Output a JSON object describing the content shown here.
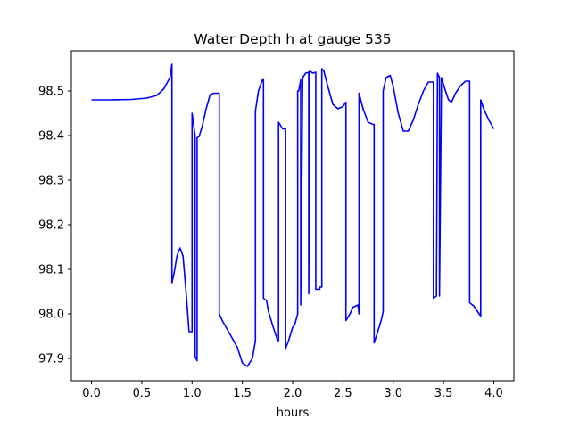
{
  "chart_data": {
    "type": "line",
    "title": "Water Depth h at gauge 535",
    "xlabel": "hours",
    "ylabel": "",
    "xlim": [
      -0.2,
      4.2
    ],
    "ylim": [
      97.85,
      98.59
    ],
    "xticks": [
      0.0,
      0.5,
      1.0,
      1.5,
      2.0,
      2.5,
      3.0,
      3.5,
      4.0
    ],
    "xtick_labels": [
      "0.0",
      "0.5",
      "1.0",
      "1.5",
      "2.0",
      "2.5",
      "3.0",
      "3.5",
      "4.0"
    ],
    "yticks": [
      97.9,
      98.0,
      98.1,
      98.2,
      98.3,
      98.4,
      98.5
    ],
    "ytick_labels": [
      "97.9",
      "98.0",
      "98.1",
      "98.2",
      "98.3",
      "98.4",
      "98.5"
    ],
    "grid": false,
    "series": [
      {
        "color": "#0000ff",
        "x": [
          0.0,
          0.2,
          0.4,
          0.55,
          0.65,
          0.72,
          0.78,
          0.8,
          0.8,
          0.82,
          0.85,
          0.88,
          0.91,
          0.94,
          0.97,
          1.0,
          1.0,
          1.03,
          1.03,
          1.05,
          1.05,
          1.07,
          1.1,
          1.14,
          1.18,
          1.22,
          1.27,
          1.27,
          1.3,
          1.35,
          1.4,
          1.45,
          1.5,
          1.55,
          1.6,
          1.63,
          1.63,
          1.66,
          1.7,
          1.71,
          1.71,
          1.74,
          1.76,
          1.8,
          1.85,
          1.86,
          1.86,
          1.9,
          1.93,
          1.93,
          1.96,
          2.0,
          2.02,
          2.05,
          2.05,
          2.06,
          2.08,
          2.08,
          2.1,
          2.13,
          2.16,
          2.16,
          2.17,
          2.2,
          2.23,
          2.23,
          2.27,
          2.27,
          2.29,
          2.29,
          2.31,
          2.35,
          2.4,
          2.45,
          2.5,
          2.53,
          2.53,
          2.57,
          2.6,
          2.65,
          2.66,
          2.66,
          2.7,
          2.75,
          2.8,
          2.81,
          2.81,
          2.84,
          2.88,
          2.9,
          2.9,
          2.93,
          2.97,
          3.0,
          3.05,
          3.1,
          3.15,
          3.2,
          3.25,
          3.3,
          3.35,
          3.4,
          3.4,
          3.43,
          3.43,
          3.44,
          3.44,
          3.46,
          3.46,
          3.48,
          3.52,
          3.55,
          3.58,
          3.62,
          3.67,
          3.72,
          3.76,
          3.76,
          3.8,
          3.84,
          3.87,
          3.87,
          3.9,
          3.95,
          4.0
        ],
        "y": [
          98.48,
          98.48,
          98.481,
          98.484,
          98.49,
          98.505,
          98.53,
          98.56,
          98.07,
          98.09,
          98.13,
          98.148,
          98.13,
          98.05,
          97.96,
          97.96,
          98.45,
          98.4,
          97.905,
          97.895,
          98.395,
          98.398,
          98.42,
          98.46,
          98.492,
          98.495,
          98.495,
          98.0,
          97.985,
          97.965,
          97.945,
          97.925,
          97.89,
          97.882,
          97.9,
          97.94,
          98.455,
          98.5,
          98.525,
          98.525,
          98.035,
          98.03,
          98.005,
          97.975,
          97.94,
          97.94,
          98.43,
          98.415,
          98.415,
          97.922,
          97.94,
          97.97,
          97.975,
          98.0,
          98.5,
          98.5,
          98.525,
          98.02,
          98.53,
          98.54,
          98.542,
          98.045,
          98.545,
          98.54,
          98.542,
          98.055,
          98.055,
          98.06,
          98.06,
          98.55,
          98.545,
          98.51,
          98.47,
          98.46,
          98.465,
          98.475,
          97.985,
          98.0,
          98.015,
          98.02,
          98.0,
          98.495,
          98.46,
          98.43,
          98.425,
          98.425,
          97.935,
          97.955,
          97.985,
          98.005,
          98.5,
          98.53,
          98.535,
          98.51,
          98.45,
          98.41,
          98.41,
          98.435,
          98.47,
          98.5,
          98.52,
          98.52,
          98.035,
          98.04,
          98.045,
          98.535,
          98.54,
          98.53,
          98.04,
          98.53,
          98.5,
          98.48,
          98.475,
          98.495,
          98.512,
          98.522,
          98.522,
          98.025,
          98.018,
          98.005,
          97.995,
          98.48,
          98.46,
          98.435,
          98.415
        ]
      }
    ]
  }
}
